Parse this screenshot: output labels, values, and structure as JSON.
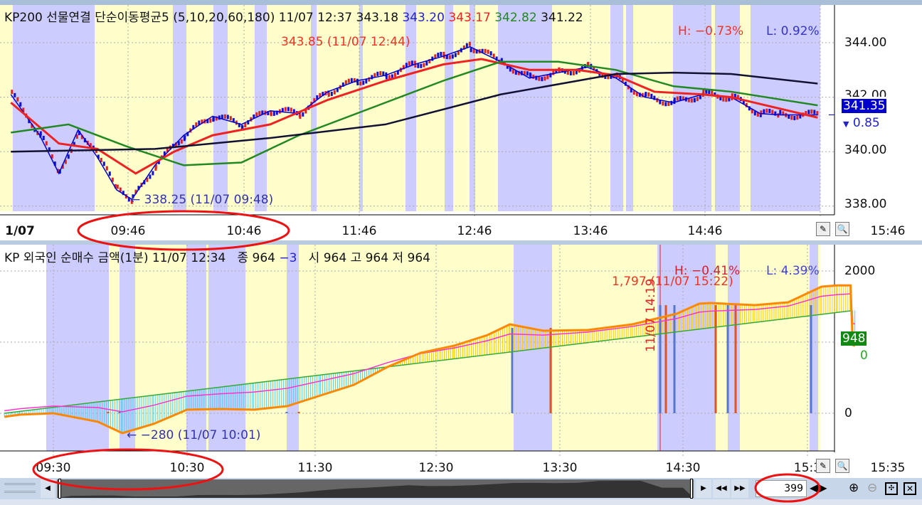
{
  "top": {
    "title": "KP200 선물연결 단순이동평균5",
    "params": "(5,10,20,60,180)",
    "datetime": "11/07 12:37",
    "v1": "343.18",
    "v2": "343.20",
    "v3": "343.17",
    "v4": "342.82",
    "v5": "341.22",
    "high_pct": "H: −0.73%",
    "low_pct": "L: 0.92%",
    "high_ann": "343.85 (11/07 12:44)",
    "low_ann": "338.25 (11/07 09:48)",
    "last_price": "341.35",
    "change": "0.85",
    "yticks": [
      "344.00",
      "342.00",
      "340.00",
      "338.00"
    ],
    "xticks": [
      "1/07",
      "09:46",
      "10:46",
      "11:46",
      "12:46",
      "13:46",
      "14:46",
      "15:46"
    ]
  },
  "bottom": {
    "title": "KP 외국인 순매수 금액(1분) 11/07 12:34",
    "close_lbl": "종 964",
    "change": "−3",
    "open_lbl": "시 964",
    "high_lbl": "고 964",
    "low_lbl": "저 964",
    "high_pct": "H: −0.41%",
    "low_pct": "L: 4.39%",
    "high_ann": "1,797 (11/07 15:22)",
    "low_ann": "−280 (11/07 10:01)",
    "vert_ann": "11/07 14:19",
    "last_value": "948",
    "last_change": "0",
    "yticks": [
      "2000",
      "0"
    ],
    "xticks": [
      "09:30",
      "10:30",
      "11:30",
      "12:30",
      "13:30",
      "14:30",
      "15:3",
      "15:35"
    ]
  },
  "scroll": {
    "count": "399"
  },
  "colors": {
    "yellow": "#ffffcc",
    "lavender": "#ccccff",
    "ma5": "#0000cc",
    "ma20": "#ee2222",
    "ma60": "#228822",
    "ma180": "#111133",
    "cum": "#ff8800",
    "annotate": "#ee3322"
  },
  "chart_data": [
    {
      "type": "line",
      "ylim": [
        337.5,
        345
      ],
      "yticks": [
        338,
        340,
        342,
        344
      ],
      "series": [
        {
          "name": "KP200 선물연결",
          "x": [
            "08:45",
            "09:00",
            "09:10",
            "09:20",
            "09:30",
            "09:40",
            "09:48",
            "10:00",
            "10:15",
            "10:30",
            "10:45",
            "11:00",
            "11:15",
            "11:30",
            "11:45",
            "12:00",
            "12:15",
            "12:30",
            "12:44",
            "13:00",
            "13:15",
            "13:30",
            "13:45",
            "14:00",
            "14:15",
            "14:30",
            "14:45",
            "15:00",
            "15:15",
            "15:25",
            "15:45"
          ],
          "y": [
            342.1,
            340.6,
            339.2,
            340.8,
            339.8,
            338.6,
            338.25,
            339.5,
            340.6,
            341.3,
            341.0,
            341.5,
            341.4,
            342.2,
            342.6,
            342.8,
            343.2,
            343.5,
            343.85,
            343.3,
            342.7,
            342.9,
            343.1,
            342.7,
            342.0,
            341.8,
            342.1,
            342.0,
            341.4,
            341.35,
            341.35
          ]
        },
        {
          "name": "20",
          "x": [
            "08:45",
            "09:10",
            "09:30",
            "09:50",
            "10:10",
            "10:30",
            "11:00",
            "11:30",
            "12:00",
            "12:30",
            "12:50",
            "13:15",
            "13:40",
            "14:00",
            "14:20",
            "14:45",
            "15:00",
            "15:45"
          ],
          "y": [
            341.8,
            340.3,
            340.1,
            339.2,
            340.0,
            340.6,
            341.0,
            341.9,
            342.6,
            343.2,
            343.4,
            343.0,
            343.0,
            342.8,
            342.2,
            342.1,
            342.0,
            341.25
          ]
        },
        {
          "name": "60",
          "x": [
            "08:45",
            "09:15",
            "09:45",
            "10:15",
            "10:45",
            "11:15",
            "12:00",
            "12:30",
            "13:00",
            "13:30",
            "14:00",
            "14:30",
            "15:00",
            "15:45"
          ],
          "y": [
            340.7,
            341.0,
            340.2,
            339.5,
            339.6,
            340.6,
            341.8,
            342.6,
            343.3,
            343.3,
            343.0,
            342.4,
            342.2,
            341.7
          ]
        },
        {
          "name": "180",
          "x": [
            "08:45",
            "10:00",
            "11:00",
            "12:00",
            "13:00",
            "14:00",
            "14:30",
            "15:00",
            "15:45"
          ],
          "y": [
            340.0,
            340.1,
            340.5,
            341.0,
            342.1,
            342.85,
            342.9,
            342.85,
            342.5
          ]
        }
      ]
    },
    {
      "type": "line",
      "ylim": [
        -500,
        2400
      ],
      "yticks": [
        0,
        2000
      ],
      "series": [
        {
          "name": "KP 외국인 순매수 금액(1분)",
          "x": [
            "09:08",
            "09:15",
            "09:30",
            "09:50",
            "10:01",
            "10:15",
            "10:30",
            "10:45",
            "11:00",
            "11:15",
            "11:30",
            "11:45",
            "12:00",
            "12:15",
            "12:30",
            "12:45",
            "12:55",
            "13:10",
            "13:30",
            "13:50",
            "14:10",
            "14:20",
            "14:25",
            "14:45",
            "15:00",
            "15:15",
            "15:22",
            "15:28",
            "15:29",
            "15:30"
          ],
          "y": [
            -50,
            -20,
            0,
            -120,
            -280,
            -150,
            50,
            60,
            50,
            100,
            250,
            400,
            650,
            850,
            950,
            1100,
            1250,
            1160,
            1170,
            1250,
            1400,
            1540,
            1550,
            1520,
            1560,
            1780,
            1797,
            1797,
            960,
            948
          ]
        },
        {
          "x": [
            "09:08",
            "15:28"
          ],
          "y": [
            0,
            1440
          ]
        }
      ]
    }
  ]
}
